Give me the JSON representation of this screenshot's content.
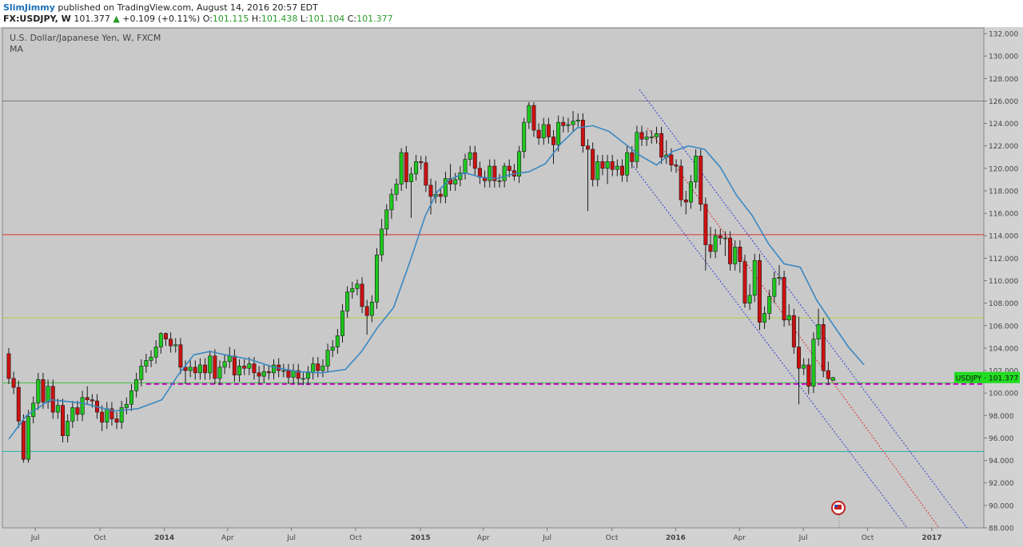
{
  "header": {
    "author": "SlimJimmy",
    "published": "published on TradingView.com, August 14, 2016 20:57 EDT",
    "quote": {
      "symbol": "FX:USDJPY, W",
      "last": "101.377",
      "arrow": "▲",
      "change": "+0.109 (+0.11%)",
      "o_label": "O:",
      "o": "101.115",
      "h_label": "H:",
      "h": "101.438",
      "l_label": "L:",
      "l": "101.104",
      "c_label": "C:",
      "c": "101.377"
    }
  },
  "chart_data": {
    "type": "candlestick",
    "title": "U.S. Dollar/Japanese Yen, W, FXCM",
    "indicator": "MA",
    "up_color": "#1ec81e",
    "down_color": "#cc1010",
    "ma_color": "#3a87c0",
    "price_label": "USDJPY · 101.377",
    "xlim": [
      -1.3,
      198.7
    ],
    "ylim": [
      88,
      132.5
    ],
    "xticks": [
      {
        "value": 5.4,
        "label": "Jul"
      },
      {
        "value": 18.6,
        "label": "Oct"
      },
      {
        "value": 31.7,
        "label": "2014"
      },
      {
        "value": 44.6,
        "label": "Apr"
      },
      {
        "value": 57.6,
        "label": "Jul"
      },
      {
        "value": 70.7,
        "label": "Oct"
      },
      {
        "value": 83.9,
        "label": "2015"
      },
      {
        "value": 96.7,
        "label": "Apr"
      },
      {
        "value": 109.7,
        "label": "Jul"
      },
      {
        "value": 122.9,
        "label": "Oct"
      },
      {
        "value": 135.9,
        "label": "2016"
      },
      {
        "value": 148.9,
        "label": "Apr"
      },
      {
        "value": 161.9,
        "label": "Jul"
      },
      {
        "value": 175.0,
        "label": "Oct"
      },
      {
        "value": 188.1,
        "label": "2017"
      }
    ],
    "yticks": [
      {
        "value": 88,
        "label": "88.000"
      },
      {
        "value": 90,
        "label": "90.000"
      },
      {
        "value": 92,
        "label": "92.000"
      },
      {
        "value": 94,
        "label": "94.000"
      },
      {
        "value": 96,
        "label": "96.000"
      },
      {
        "value": 98,
        "label": "98.000"
      },
      {
        "value": 100,
        "label": "100.000"
      },
      {
        "value": 102,
        "label": "102.000"
      },
      {
        "value": 104,
        "label": "104.000"
      },
      {
        "value": 106,
        "label": "106.000"
      },
      {
        "value": 108,
        "label": "108.000"
      },
      {
        "value": 110,
        "label": "110.000"
      },
      {
        "value": 112,
        "label": "112.000"
      },
      {
        "value": 114,
        "label": "114.000"
      },
      {
        "value": 116,
        "label": "116.000"
      },
      {
        "value": 118,
        "label": "118.000"
      },
      {
        "value": 120,
        "label": "120.000"
      },
      {
        "value": 122,
        "label": "122.000"
      },
      {
        "value": 124,
        "label": "124.000"
      },
      {
        "value": 126,
        "label": "126.000"
      },
      {
        "value": 128,
        "label": "128.000"
      },
      {
        "value": 130,
        "label": "130.000"
      },
      {
        "value": 132,
        "label": "132.000"
      }
    ],
    "levels": [
      {
        "value": 126.0,
        "color": "#7a7a7a"
      },
      {
        "value": 114.1,
        "color": "#e03030"
      },
      {
        "value": 106.7,
        "color": "#b8d040"
      },
      {
        "value": 100.9,
        "color": "#40c040"
      },
      {
        "value": 94.8,
        "color": "#20b0a0"
      },
      {
        "value": 100.8,
        "color": "#cc00cc",
        "dashed": true,
        "start": 28
      }
    ],
    "x": [
      0,
      1,
      2,
      3,
      4,
      5,
      6,
      7,
      8,
      9,
      10,
      11,
      12,
      13,
      14,
      15,
      16,
      17,
      18,
      19,
      20,
      21,
      22,
      23,
      24,
      25,
      26,
      27,
      28,
      29,
      30,
      31,
      32,
      33,
      34,
      35,
      36,
      37,
      38,
      39,
      40,
      41,
      42,
      43,
      44,
      45,
      46,
      47,
      48,
      49,
      50,
      51,
      52,
      53,
      54,
      55,
      56,
      57,
      58,
      59,
      60,
      61,
      62,
      63,
      64,
      65,
      66,
      67,
      68,
      69,
      70,
      71,
      72,
      73,
      74,
      75,
      76,
      77,
      78,
      79,
      80,
      81,
      82,
      83,
      84,
      85,
      86,
      87,
      88,
      89,
      90,
      91,
      92,
      93,
      94,
      95,
      96,
      97,
      98,
      99,
      100,
      101,
      102,
      103,
      104,
      105,
      106,
      107,
      108,
      109,
      110,
      111,
      112,
      113,
      114,
      115,
      116,
      117,
      118,
      119,
      120,
      121,
      122,
      123,
      124,
      125,
      126,
      127,
      128,
      129,
      130,
      131,
      132,
      133,
      134,
      135,
      136,
      137,
      138,
      139,
      140,
      141,
      142,
      143,
      144,
      145,
      146,
      147,
      148,
      149,
      150,
      151,
      152,
      153,
      154,
      155,
      156,
      157,
      158,
      159,
      160,
      161,
      162,
      163,
      164,
      165,
      166,
      167,
      168
    ],
    "ohlc": [
      [
        103.5,
        104.0,
        100.8,
        101.3
      ],
      [
        101.3,
        101.9,
        99.9,
        100.5
      ],
      [
        100.5,
        101.1,
        96.9,
        97.5
      ],
      [
        97.5,
        98.1,
        93.8,
        94.1
      ],
      [
        94.1,
        98.5,
        93.8,
        97.9
      ],
      [
        97.9,
        99.7,
        97.3,
        99.1
      ],
      [
        99.1,
        101.8,
        98.5,
        101.2
      ],
      [
        101.2,
        101.8,
        98.6,
        99.2
      ],
      [
        99.2,
        101.2,
        98.6,
        100.6
      ],
      [
        100.6,
        101.2,
        97.7,
        98.3
      ],
      [
        98.3,
        99.5,
        97.7,
        98.9
      ],
      [
        98.9,
        99.5,
        95.6,
        96.2
      ],
      [
        96.2,
        98.1,
        95.6,
        97.5
      ],
      [
        97.5,
        99.3,
        96.9,
        98.7
      ],
      [
        98.7,
        99.3,
        97.5,
        98.1
      ],
      [
        98.1,
        100.2,
        97.5,
        99.6
      ],
      [
        99.6,
        100.6,
        99.0,
        99.4
      ],
      [
        99.4,
        99.9,
        98.7,
        99.3
      ],
      [
        99.3,
        99.9,
        97.7,
        98.3
      ],
      [
        98.3,
        98.9,
        96.6,
        97.4
      ],
      [
        97.4,
        99.2,
        96.8,
        98.6
      ],
      [
        98.6,
        99.2,
        97.1,
        97.7
      ],
      [
        97.7,
        98.3,
        96.8,
        97.4
      ],
      [
        97.4,
        99.3,
        96.8,
        98.7
      ],
      [
        98.7,
        99.6,
        98.1,
        99.0
      ],
      [
        99.0,
        100.8,
        98.4,
        100.2
      ],
      [
        100.2,
        101.8,
        99.6,
        101.2
      ],
      [
        101.2,
        103.0,
        100.6,
        102.4
      ],
      [
        102.4,
        103.5,
        101.8,
        102.9
      ],
      [
        102.9,
        103.8,
        102.3,
        103.2
      ],
      [
        103.2,
        104.7,
        102.6,
        104.1
      ],
      [
        104.1,
        105.4,
        103.5,
        105.3
      ],
      [
        105.3,
        105.4,
        104.2,
        104.8
      ],
      [
        104.8,
        105.4,
        103.6,
        104.2
      ],
      [
        104.2,
        104.9,
        103.6,
        104.3
      ],
      [
        104.3,
        104.9,
        101.7,
        102.3
      ],
      [
        102.3,
        102.9,
        100.8,
        102.0
      ],
      [
        102.0,
        102.9,
        101.4,
        102.3
      ],
      [
        102.3,
        102.9,
        101.2,
        101.8
      ],
      [
        101.8,
        103.1,
        101.2,
        102.5
      ],
      [
        102.5,
        103.1,
        101.2,
        101.8
      ],
      [
        101.8,
        103.8,
        101.2,
        103.3
      ],
      [
        103.3,
        103.9,
        100.8,
        101.3
      ],
      [
        101.3,
        102.9,
        100.7,
        102.3
      ],
      [
        102.3,
        103.4,
        101.7,
        102.8
      ],
      [
        102.8,
        104.1,
        102.2,
        103.3
      ],
      [
        103.3,
        103.9,
        101.0,
        101.6
      ],
      [
        101.6,
        103.0,
        101.0,
        102.4
      ],
      [
        102.4,
        103.0,
        101.6,
        102.2
      ],
      [
        102.2,
        103.2,
        101.6,
        102.6
      ],
      [
        102.6,
        103.2,
        101.2,
        101.8
      ],
      [
        101.8,
        102.4,
        100.8,
        101.5
      ],
      [
        101.5,
        102.5,
        100.9,
        101.9
      ],
      [
        101.9,
        102.5,
        101.2,
        101.8
      ],
      [
        101.8,
        103.0,
        101.2,
        102.5
      ],
      [
        102.5,
        103.1,
        101.4,
        102.0
      ],
      [
        102.0,
        102.6,
        101.4,
        102.0
      ],
      [
        102.0,
        102.6,
        100.8,
        101.4
      ],
      [
        101.4,
        102.6,
        100.8,
        102.0
      ],
      [
        102.0,
        102.6,
        100.7,
        101.3
      ],
      [
        101.3,
        101.9,
        100.7,
        101.3
      ],
      [
        101.3,
        102.4,
        100.7,
        101.8
      ],
      [
        101.8,
        103.2,
        101.2,
        102.6
      ],
      [
        102.6,
        103.2,
        101.4,
        102.0
      ],
      [
        102.0,
        103.0,
        101.4,
        102.4
      ],
      [
        102.4,
        104.4,
        101.8,
        103.8
      ],
      [
        103.8,
        104.7,
        103.2,
        104.1
      ],
      [
        104.1,
        105.7,
        103.5,
        105.1
      ],
      [
        105.1,
        107.9,
        104.5,
        107.3
      ],
      [
        107.3,
        109.5,
        106.7,
        109.0
      ],
      [
        109.0,
        109.9,
        108.4,
        109.3
      ],
      [
        109.3,
        110.1,
        108.7,
        109.7
      ],
      [
        109.7,
        110.3,
        107.1,
        107.7
      ],
      [
        107.7,
        108.3,
        105.2,
        106.9
      ],
      [
        106.9,
        108.7,
        106.3,
        108.1
      ],
      [
        108.1,
        112.9,
        107.5,
        112.3
      ],
      [
        112.3,
        115.5,
        111.7,
        114.6
      ],
      [
        114.6,
        116.8,
        114.0,
        116.3
      ],
      [
        116.3,
        118.2,
        115.5,
        117.7
      ],
      [
        117.7,
        119.1,
        117.1,
        118.6
      ],
      [
        118.6,
        121.8,
        118.0,
        121.4
      ],
      [
        121.4,
        122.0,
        118.2,
        118.8
      ],
      [
        118.8,
        120.1,
        115.6,
        119.5
      ],
      [
        119.5,
        121.2,
        118.9,
        120.6
      ],
      [
        120.6,
        121.1,
        119.9,
        120.5
      ],
      [
        120.5,
        121.1,
        117.9,
        118.5
      ],
      [
        118.5,
        119.1,
        115.9,
        117.5
      ],
      [
        117.5,
        118.9,
        116.9,
        117.7
      ],
      [
        117.7,
        118.3,
        116.9,
        117.5
      ],
      [
        117.5,
        119.7,
        116.9,
        119.1
      ],
      [
        119.1,
        120.4,
        118.0,
        118.6
      ],
      [
        118.6,
        119.6,
        118.0,
        119.0
      ],
      [
        119.0,
        120.2,
        118.4,
        119.6
      ],
      [
        119.6,
        121.3,
        119.0,
        120.8
      ],
      [
        120.8,
        122.0,
        120.2,
        121.4
      ],
      [
        121.4,
        122.0,
        119.4,
        120.0
      ],
      [
        120.0,
        120.6,
        118.6,
        119.2
      ],
      [
        119.2,
        119.8,
        118.3,
        118.9
      ],
      [
        118.9,
        120.8,
        118.3,
        120.2
      ],
      [
        120.2,
        120.8,
        118.3,
        118.9
      ],
      [
        118.9,
        119.5,
        118.3,
        118.9
      ],
      [
        118.9,
        120.5,
        118.3,
        120.2
      ],
      [
        120.2,
        120.8,
        119.2,
        119.8
      ],
      [
        119.8,
        120.4,
        118.9,
        119.3
      ],
      [
        119.3,
        122.0,
        118.7,
        121.5
      ],
      [
        121.5,
        124.5,
        120.9,
        124.1
      ],
      [
        124.1,
        125.9,
        123.5,
        125.6
      ],
      [
        125.6,
        125.9,
        122.8,
        123.4
      ],
      [
        123.4,
        124.0,
        122.1,
        122.7
      ],
      [
        122.7,
        124.5,
        122.1,
        123.9
      ],
      [
        123.9,
        124.5,
        122.2,
        122.8
      ],
      [
        122.8,
        123.4,
        120.4,
        122.1
      ],
      [
        122.1,
        124.7,
        121.5,
        124.1
      ],
      [
        124.1,
        124.6,
        123.2,
        123.8
      ],
      [
        123.8,
        124.5,
        123.2,
        123.9
      ],
      [
        123.9,
        125.1,
        123.3,
        124.2
      ],
      [
        124.2,
        124.9,
        123.7,
        124.3
      ],
      [
        124.3,
        124.9,
        121.4,
        122.0
      ],
      [
        122.0,
        122.6,
        116.2,
        121.7
      ],
      [
        121.7,
        122.3,
        118.4,
        119.0
      ],
      [
        119.0,
        121.2,
        118.4,
        120.6
      ],
      [
        120.6,
        121.2,
        119.4,
        120.0
      ],
      [
        120.0,
        121.2,
        118.6,
        120.6
      ],
      [
        120.6,
        121.2,
        119.3,
        119.9
      ],
      [
        119.9,
        120.8,
        119.3,
        120.2
      ],
      [
        120.2,
        120.8,
        118.8,
        119.4
      ],
      [
        119.4,
        122.0,
        118.8,
        121.4
      ],
      [
        121.4,
        122.0,
        120.0,
        120.6
      ],
      [
        120.6,
        123.8,
        120.0,
        123.2
      ],
      [
        123.2,
        123.8,
        122.0,
        122.6
      ],
      [
        122.6,
        123.4,
        122.0,
        122.8
      ],
      [
        122.8,
        123.4,
        122.2,
        122.8
      ],
      [
        122.8,
        123.7,
        122.2,
        123.1
      ],
      [
        123.1,
        123.7,
        120.4,
        121.0
      ],
      [
        121.0,
        122.5,
        120.4,
        121.2
      ],
      [
        121.2,
        121.8,
        119.7,
        120.3
      ],
      [
        120.3,
        120.8,
        119.6,
        120.2
      ],
      [
        120.2,
        120.8,
        116.6,
        117.2
      ],
      [
        117.2,
        118.0,
        115.9,
        117.0
      ],
      [
        117.0,
        119.4,
        116.4,
        118.8
      ],
      [
        118.8,
        121.7,
        118.2,
        121.1
      ],
      [
        121.1,
        121.7,
        116.2,
        116.8
      ],
      [
        116.8,
        117.4,
        110.9,
        113.2
      ],
      [
        113.2,
        114.8,
        112.0,
        112.6
      ],
      [
        112.6,
        114.6,
        112.0,
        114.0
      ],
      [
        114.0,
        114.6,
        113.2,
        113.8
      ],
      [
        113.8,
        114.4,
        112.2,
        113.8
      ],
      [
        113.8,
        114.4,
        110.9,
        111.5
      ],
      [
        111.5,
        113.6,
        110.9,
        113.0
      ],
      [
        113.0,
        113.6,
        110.7,
        111.7
      ],
      [
        111.7,
        112.3,
        107.6,
        108.0
      ],
      [
        108.0,
        109.7,
        107.4,
        108.7
      ],
      [
        108.7,
        112.4,
        108.1,
        111.8
      ],
      [
        111.8,
        112.4,
        105.6,
        106.3
      ],
      [
        106.3,
        107.7,
        105.7,
        107.1
      ],
      [
        107.1,
        109.2,
        106.5,
        108.6
      ],
      [
        108.6,
        110.8,
        108.0,
        110.2
      ],
      [
        110.2,
        111.4,
        109.6,
        110.3
      ],
      [
        110.3,
        110.9,
        105.9,
        106.5
      ],
      [
        106.5,
        107.9,
        106.0,
        106.9
      ],
      [
        106.9,
        107.5,
        103.5,
        104.1
      ],
      [
        104.1,
        106.8,
        99.0,
        102.2
      ],
      [
        102.2,
        103.1,
        101.6,
        102.5
      ],
      [
        102.5,
        103.1,
        99.9,
        100.6
      ],
      [
        100.6,
        105.4,
        100.0,
        104.8
      ],
      [
        104.8,
        107.5,
        104.2,
        106.1
      ],
      [
        106.1,
        106.7,
        101.4,
        102.0
      ],
      [
        102.0,
        102.8,
        100.7,
        101.27
      ],
      [
        101.115,
        101.438,
        101.104,
        101.377
      ]
    ],
    "ma": {
      "x": [
        0,
        3.6,
        8.5,
        15,
        21.5,
        26.3,
        31.2,
        34.5,
        37.7,
        41,
        44.2,
        49.1,
        54,
        58.9,
        63.7,
        68.6,
        71.9,
        75.1,
        78.4,
        81.6,
        84.9,
        87.3,
        89.8,
        93,
        96.3,
        99.5,
        102.8,
        106,
        109.3,
        112.5,
        115.8,
        119,
        122.3,
        125.5,
        128.8,
        132,
        135.3,
        138.5,
        141.8,
        145,
        148.3,
        151.5,
        154.8,
        158,
        161.3,
        164.6,
        167.8,
        171.1,
        174.3
      ],
      "values": [
        95.9,
        98.0,
        99.4,
        99.1,
        98.4,
        98.6,
        99.4,
        101.6,
        103.4,
        103.7,
        103.4,
        103.0,
        102.3,
        101.9,
        101.8,
        102.1,
        103.7,
        105.8,
        107.6,
        111.5,
        115.8,
        117.9,
        119.0,
        119.6,
        119.2,
        119.1,
        119.5,
        119.7,
        120.4,
        122.2,
        123.6,
        123.8,
        123.3,
        122.2,
        121.1,
        120.3,
        121.5,
        122.0,
        121.7,
        120.1,
        117.6,
        115.8,
        113.3,
        111.5,
        111.2,
        108.3,
        106.2,
        104.1,
        102.5
      ]
    }
  }
}
